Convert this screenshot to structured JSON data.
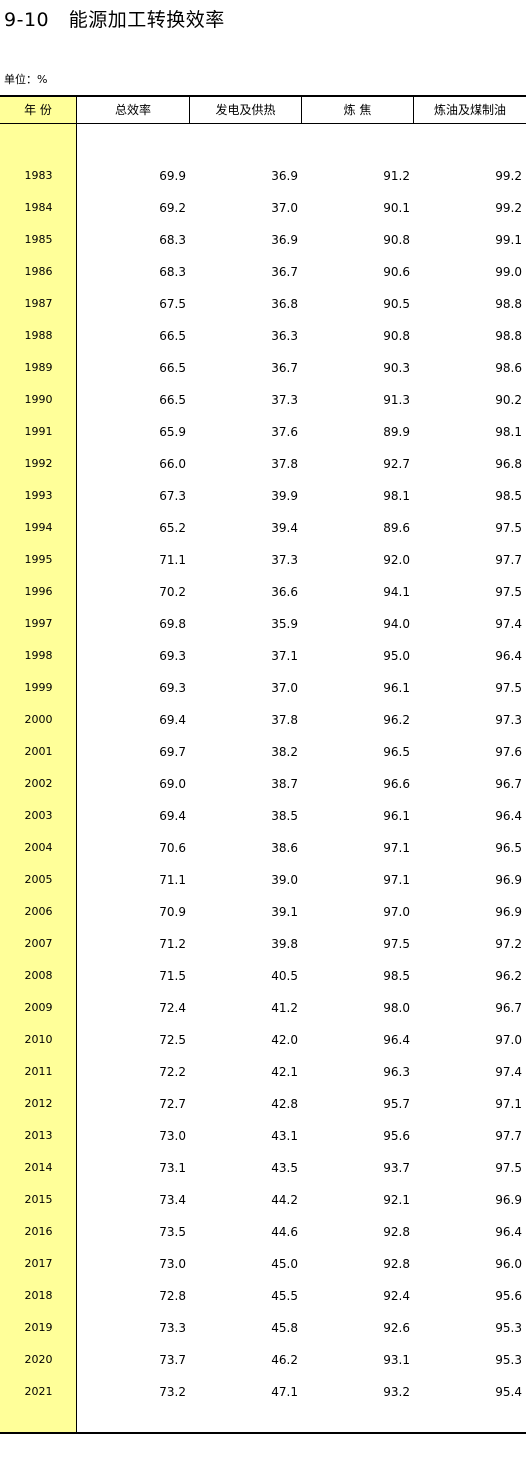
{
  "title": "9-10   能源加工转换效率",
  "unit": "单位：%",
  "headers": [
    "年 份",
    "总效率",
    "发电及供热",
    "炼 焦",
    "炼油及煤制油"
  ],
  "rows": [
    [
      "1983",
      "69.9",
      "36.9",
      "91.2",
      "99.2"
    ],
    [
      "1984",
      "69.2",
      "37.0",
      "90.1",
      "99.2"
    ],
    [
      "1985",
      "68.3",
      "36.9",
      "90.8",
      "99.1"
    ],
    [
      "1986",
      "68.3",
      "36.7",
      "90.6",
      "99.0"
    ],
    [
      "1987",
      "67.5",
      "36.8",
      "90.5",
      "98.8"
    ],
    [
      "1988",
      "66.5",
      "36.3",
      "90.8",
      "98.8"
    ],
    [
      "1989",
      "66.5",
      "36.7",
      "90.3",
      "98.6"
    ],
    [
      "1990",
      "66.5",
      "37.3",
      "91.3",
      "90.2"
    ],
    [
      "1991",
      "65.9",
      "37.6",
      "89.9",
      "98.1"
    ],
    [
      "1992",
      "66.0",
      "37.8",
      "92.7",
      "96.8"
    ],
    [
      "1993",
      "67.3",
      "39.9",
      "98.1",
      "98.5"
    ],
    [
      "1994",
      "65.2",
      "39.4",
      "89.6",
      "97.5"
    ],
    [
      "1995",
      "71.1",
      "37.3",
      "92.0",
      "97.7"
    ],
    [
      "1996",
      "70.2",
      "36.6",
      "94.1",
      "97.5"
    ],
    [
      "1997",
      "69.8",
      "35.9",
      "94.0",
      "97.4"
    ],
    [
      "1998",
      "69.3",
      "37.1",
      "95.0",
      "96.4"
    ],
    [
      "1999",
      "69.3",
      "37.0",
      "96.1",
      "97.5"
    ],
    [
      "2000",
      "69.4",
      "37.8",
      "96.2",
      "97.3"
    ],
    [
      "2001",
      "69.7",
      "38.2",
      "96.5",
      "97.6"
    ],
    [
      "2002",
      "69.0",
      "38.7",
      "96.6",
      "96.7"
    ],
    [
      "2003",
      "69.4",
      "38.5",
      "96.1",
      "96.4"
    ],
    [
      "2004",
      "70.6",
      "38.6",
      "97.1",
      "96.5"
    ],
    [
      "2005",
      "71.1",
      "39.0",
      "97.1",
      "96.9"
    ],
    [
      "2006",
      "70.9",
      "39.1",
      "97.0",
      "96.9"
    ],
    [
      "2007",
      "71.2",
      "39.8",
      "97.5",
      "97.2"
    ],
    [
      "2008",
      "71.5",
      "40.5",
      "98.5",
      "96.2"
    ],
    [
      "2009",
      "72.4",
      "41.2",
      "98.0",
      "96.7"
    ],
    [
      "2010",
      "72.5",
      "42.0",
      "96.4",
      "97.0"
    ],
    [
      "2011",
      "72.2",
      "42.1",
      "96.3",
      "97.4"
    ],
    [
      "2012",
      "72.7",
      "42.8",
      "95.7",
      "97.1"
    ],
    [
      "2013",
      "73.0",
      "43.1",
      "95.6",
      "97.7"
    ],
    [
      "2014",
      "73.1",
      "43.5",
      "93.7",
      "97.5"
    ],
    [
      "2015",
      "73.4",
      "44.2",
      "92.1",
      "96.9"
    ],
    [
      "2016",
      "73.5",
      "44.6",
      "92.8",
      "96.4"
    ],
    [
      "2017",
      "73.0",
      "45.0",
      "92.8",
      "96.0"
    ],
    [
      "2018",
      "72.8",
      "45.5",
      "92.4",
      "95.6"
    ],
    [
      "2019",
      "73.3",
      "45.8",
      "92.6",
      "95.3"
    ],
    [
      "2020",
      "73.7",
      "46.2",
      "93.1",
      "95.3"
    ],
    [
      "2021",
      "73.2",
      "47.1",
      "93.2",
      "95.4"
    ]
  ],
  "colors": {
    "year_column_bg": "#ffff99",
    "border": "#000000"
  }
}
